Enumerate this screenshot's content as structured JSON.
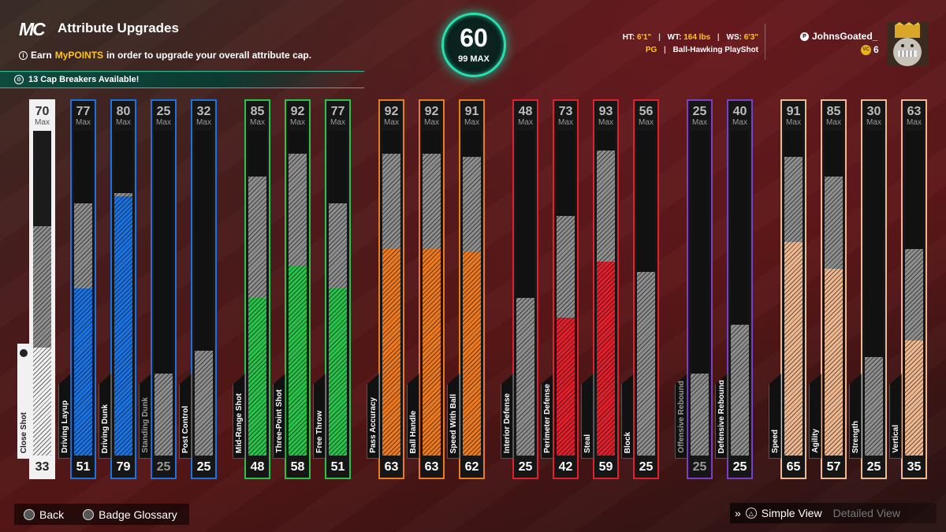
{
  "header": {
    "logo": "MC",
    "title": "Attribute Upgrades",
    "info_prefix": "Earn",
    "info_highlight": "MyPOINTS",
    "info_suffix": "in order to upgrade your overall attribute cap.",
    "cap_breakers": "13 Cap Breakers Available!"
  },
  "overall": {
    "value": "60",
    "max_label": "99 MAX"
  },
  "player": {
    "ht_label": "HT:",
    "ht": "6'1\"",
    "wt_label": "WT:",
    "wt": "164 lbs",
    "ws_label": "WS:",
    "ws": "6'3\"",
    "position": "PG",
    "build": "Ball-Hawking PlayShot",
    "gamertag": "JohnsGoated_",
    "vc": "6"
  },
  "colors": {
    "white": "#f1f1f1",
    "blue": "#1a73e0",
    "green": "#2ac24a",
    "orange": "#ee7a1f",
    "red": "#e0202c",
    "purple": "#7a3ec8",
    "tan": "#f0b890",
    "accent": "#27e0b0",
    "yellow": "#ffc61a"
  },
  "attributes": [
    {
      "name": "Close Shot",
      "max": "70",
      "max_label": "Max",
      "value": "33",
      "color": "white",
      "selected": true
    },
    {
      "name": "Driving Layup",
      "max": "77",
      "max_label": "Max",
      "value": "51",
      "color": "blue"
    },
    {
      "name": "Driving Dunk",
      "max": "80",
      "max_label": "Max",
      "value": "79",
      "color": "blue"
    },
    {
      "name": "Standing Dunk",
      "max": "25",
      "max_label": "Max",
      "value": "25",
      "color": "blue",
      "dim": true
    },
    {
      "name": "Post Control",
      "max": "32",
      "max_label": "Max",
      "value": "25",
      "color": "blue"
    },
    {
      "name": "Mid-Range Shot",
      "max": "85",
      "max_label": "Max",
      "value": "48",
      "color": "green"
    },
    {
      "name": "Three-Point Shot",
      "max": "92",
      "max_label": "Max",
      "value": "58",
      "color": "green"
    },
    {
      "name": "Free Throw",
      "max": "77",
      "max_label": "Max",
      "value": "51",
      "color": "green"
    },
    {
      "name": "Pass Accuracy",
      "max": "92",
      "max_label": "Max",
      "value": "63",
      "color": "orange"
    },
    {
      "name": "Ball Handle",
      "max": "92",
      "max_label": "Max",
      "value": "63",
      "color": "orange"
    },
    {
      "name": "Speed With Ball",
      "max": "91",
      "max_label": "Max",
      "value": "62",
      "color": "orange"
    },
    {
      "name": "Interior Defense",
      "max": "48",
      "max_label": "Max",
      "value": "25",
      "color": "red"
    },
    {
      "name": "Perimeter Defense",
      "max": "73",
      "max_label": "Max",
      "value": "42",
      "color": "red"
    },
    {
      "name": "Steal",
      "max": "93",
      "max_label": "Max",
      "value": "59",
      "color": "red"
    },
    {
      "name": "Block",
      "max": "56",
      "max_label": "Max",
      "value": "25",
      "color": "red"
    },
    {
      "name": "Offensive Rebound",
      "max": "25",
      "max_label": "Max",
      "value": "25",
      "color": "purple",
      "dim": true
    },
    {
      "name": "Defensive Rebound",
      "max": "40",
      "max_label": "Max",
      "value": "25",
      "color": "purple"
    },
    {
      "name": "Speed",
      "max": "91",
      "max_label": "Max",
      "value": "65",
      "color": "tan"
    },
    {
      "name": "Agility",
      "max": "85",
      "max_label": "Max",
      "value": "57",
      "color": "tan"
    },
    {
      "name": "Strength",
      "max": "30",
      "max_label": "Max",
      "value": "25",
      "color": "tan"
    },
    {
      "name": "Vertical",
      "max": "63",
      "max_label": "Max",
      "value": "35",
      "color": "tan"
    }
  ],
  "footer": {
    "back": "Back",
    "badge_glossary": "Badge Glossary",
    "simple_view": "Simple View",
    "detailed_view": "Detailed View"
  }
}
